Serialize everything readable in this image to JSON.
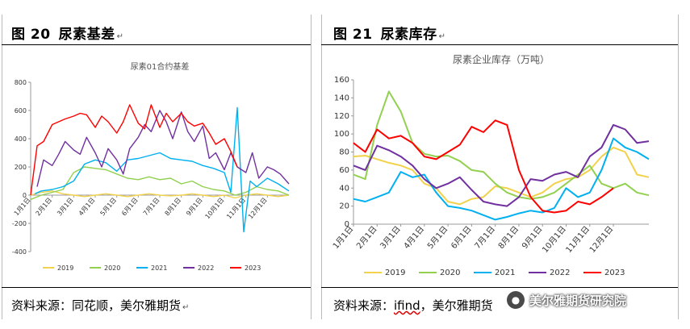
{
  "left_panel": {
    "figure_number": "图 20",
    "figure_title": "尿素基差",
    "source": "资料来源：同花顺，美尔雅期货",
    "return_mark": "↵"
  },
  "right_panel": {
    "figure_number": "图 21",
    "figure_title": "尿素库存",
    "source_prefix": "资料来源：",
    "source_ifind": "ifind",
    "source_suffix": "，美尔雅期货",
    "return_mark": "↵"
  },
  "watermark": {
    "text": "美尔雅期货研究院",
    "icon": "wechat-icon"
  },
  "colors": {
    "2019": "#f2d24b",
    "2020": "#92d050",
    "2021": "#00b0f0",
    "2022": "#7030a0",
    "2023": "#ff0000"
  },
  "chart_data": [
    {
      "type": "line",
      "title": "尿素01合约基差",
      "xlabel": "",
      "ylabel": "",
      "ylim": [
        -400,
        800
      ],
      "yticks": [
        800,
        600,
        400,
        200,
        0,
        -200,
        -400
      ],
      "x_tick_labels": [
        "1月1日",
        "2月1日",
        "3月1日",
        "4月1日",
        "5月1日",
        "6月1日",
        "7月1日",
        "8月1日",
        "9月1日",
        "10月1日",
        "11月1日",
        "12月1日"
      ],
      "x_domain": [
        0,
        12
      ],
      "legend": [
        "2019",
        "2020",
        "2021",
        "2022",
        "2023"
      ],
      "legend_position": "bottom",
      "grid": false,
      "series": [
        {
          "name": "2019",
          "x": [
            0,
            0.5,
            1,
            1.5,
            2,
            2.5,
            3,
            3.5,
            4,
            4.5,
            5,
            5.5,
            6,
            6.5,
            7,
            7.5,
            8,
            8.5,
            9,
            9.5,
            10,
            10.5,
            11,
            11.5,
            12
          ],
          "values": [
            0,
            20,
            30,
            10,
            0,
            -10,
            0,
            10,
            0,
            -10,
            0,
            10,
            0,
            -5,
            0,
            10,
            0,
            -10,
            0,
            -20,
            0,
            10,
            0,
            -10,
            0
          ]
        },
        {
          "name": "2020",
          "x": [
            0,
            0.5,
            1,
            1.5,
            2,
            2.5,
            3,
            3.5,
            4,
            4.5,
            5,
            5.5,
            6,
            6.5,
            7,
            7.5,
            8,
            8.5,
            9,
            9.5,
            10,
            10.5,
            11,
            11.5,
            12
          ],
          "values": [
            -30,
            0,
            20,
            40,
            160,
            200,
            190,
            180,
            150,
            120,
            110,
            130,
            110,
            120,
            80,
            100,
            60,
            40,
            30,
            0,
            20,
            60,
            40,
            30,
            0
          ]
        },
        {
          "name": "2021",
          "x": [
            0.2,
            0.5,
            1,
            1.5,
            2,
            2.5,
            3,
            3.5,
            4,
            4.5,
            5,
            5.5,
            6,
            6.5,
            7,
            7.5,
            8,
            8.5,
            9,
            9.3,
            9.6,
            9.9,
            10.2,
            10.5,
            11,
            11.5,
            12
          ],
          "values": [
            10,
            30,
            40,
            60,
            100,
            220,
            250,
            230,
            170,
            250,
            260,
            280,
            300,
            260,
            250,
            240,
            210,
            190,
            160,
            20,
            620,
            -260,
            100,
            60,
            120,
            80,
            30
          ]
        },
        {
          "name": "2022",
          "x": [
            0.3,
            0.6,
            1,
            1.3,
            1.6,
            2,
            2.3,
            2.6,
            3,
            3.3,
            3.6,
            4,
            4.3,
            4.6,
            5,
            5.3,
            5.6,
            6,
            6.3,
            6.6,
            7,
            7.3,
            7.6,
            8,
            8.3,
            8.6,
            9,
            9.3,
            9.6,
            10,
            10.3,
            10.6,
            11,
            11.3,
            11.6,
            12
          ],
          "values": [
            60,
            250,
            210,
            290,
            380,
            320,
            290,
            410,
            300,
            200,
            330,
            250,
            150,
            330,
            410,
            500,
            450,
            600,
            520,
            400,
            590,
            450,
            380,
            490,
            260,
            300,
            180,
            300,
            200,
            160,
            300,
            120,
            200,
            180,
            150,
            80
          ]
        },
        {
          "name": "2023",
          "x": [
            0,
            0.3,
            0.6,
            1,
            1.3,
            1.6,
            2,
            2.3,
            2.6,
            3,
            3.3,
            3.6,
            4,
            4.3,
            4.6,
            5,
            5.3,
            5.6,
            6,
            6.3,
            6.6,
            7,
            7.3,
            7.6,
            8,
            8.3,
            8.6,
            9,
            9.3,
            9.6
          ],
          "values": [
            0,
            350,
            380,
            500,
            520,
            540,
            560,
            580,
            570,
            480,
            560,
            520,
            440,
            520,
            640,
            510,
            470,
            640,
            480,
            580,
            520,
            580,
            520,
            490,
            510,
            440,
            360,
            400,
            310,
            200
          ]
        }
      ]
    },
    {
      "type": "line",
      "title": "尿素企业库存（万吨）",
      "xlabel": "",
      "ylabel": "",
      "ylim": [
        0,
        160
      ],
      "yticks": [
        160,
        140,
        120,
        100,
        80,
        60,
        40,
        20,
        0
      ],
      "x_tick_labels": [
        "1月1日",
        "2月1日",
        "3月1日",
        "4月1日",
        "5月1日",
        "6月1日",
        "7月1日",
        "8月1日",
        "9月1日",
        "10月1日",
        "11月1日",
        "12月1日"
      ],
      "x_domain": [
        0,
        12.5
      ],
      "legend": [
        "2019",
        "2020",
        "2021",
        "2022",
        "2023"
      ],
      "legend_position": "bottom",
      "grid": false,
      "series": [
        {
          "name": "2019",
          "x": [
            0,
            0.5,
            1,
            1.5,
            2,
            2.5,
            3,
            3.5,
            4,
            4.5,
            5,
            5.5,
            6,
            6.5,
            7,
            7.5,
            8,
            8.5,
            9,
            9.5,
            10,
            10.5,
            11,
            11.5,
            12,
            12.5
          ],
          "values": [
            75,
            76,
            72,
            68,
            65,
            60,
            45,
            40,
            25,
            22,
            28,
            30,
            42,
            40,
            35,
            30,
            35,
            45,
            50,
            52,
            60,
            75,
            85,
            80,
            55,
            52
          ]
        },
        {
          "name": "2020",
          "x": [
            0,
            0.5,
            1,
            1.5,
            2,
            2.5,
            3,
            3.5,
            4,
            4.5,
            5,
            5.5,
            6,
            6.5,
            7,
            7.5,
            8,
            8.5,
            9,
            9.5,
            10,
            10.5,
            11,
            11.5,
            12,
            12.5
          ],
          "values": [
            55,
            50,
            110,
            147,
            125,
            90,
            78,
            75,
            76,
            70,
            60,
            58,
            45,
            35,
            30,
            28,
            30,
            35,
            45,
            55,
            65,
            45,
            40,
            45,
            35,
            32
          ]
        },
        {
          "name": "2021",
          "x": [
            0,
            0.5,
            1,
            1.5,
            2,
            2.5,
            3,
            3.5,
            4,
            4.5,
            5,
            5.5,
            6,
            6.5,
            7,
            7.5,
            8,
            8.5,
            9,
            9.5,
            10,
            10.5,
            11,
            11.5,
            12,
            12.5
          ],
          "values": [
            28,
            25,
            30,
            35,
            58,
            52,
            55,
            35,
            20,
            18,
            15,
            10,
            5,
            8,
            12,
            15,
            13,
            18,
            40,
            30,
            35,
            60,
            95,
            85,
            80,
            72
          ]
        },
        {
          "name": "2022",
          "x": [
            0,
            0.5,
            1,
            1.5,
            2,
            2.5,
            3,
            3.5,
            4,
            4.5,
            5,
            5.5,
            6,
            6.5,
            7,
            7.5,
            8,
            8.5,
            9,
            9.5,
            10,
            10.5,
            11,
            11.5,
            12,
            12.5
          ],
          "values": [
            65,
            60,
            87,
            82,
            75,
            65,
            50,
            40,
            45,
            52,
            38,
            25,
            22,
            20,
            30,
            50,
            48,
            55,
            58,
            52,
            75,
            85,
            110,
            105,
            90,
            92
          ]
        },
        {
          "name": "2023",
          "x": [
            0,
            0.5,
            1,
            1.5,
            2,
            2.5,
            3,
            3.5,
            4,
            4.5,
            5,
            5.5,
            6,
            6.5,
            7,
            7.5,
            8,
            8.5,
            9,
            9.5,
            10,
            10.5,
            11
          ],
          "values": [
            90,
            80,
            105,
            95,
            98,
            90,
            75,
            72,
            80,
            88,
            108,
            102,
            115,
            110,
            60,
            30,
            15,
            13,
            15,
            25,
            22,
            30,
            40
          ]
        }
      ]
    }
  ]
}
